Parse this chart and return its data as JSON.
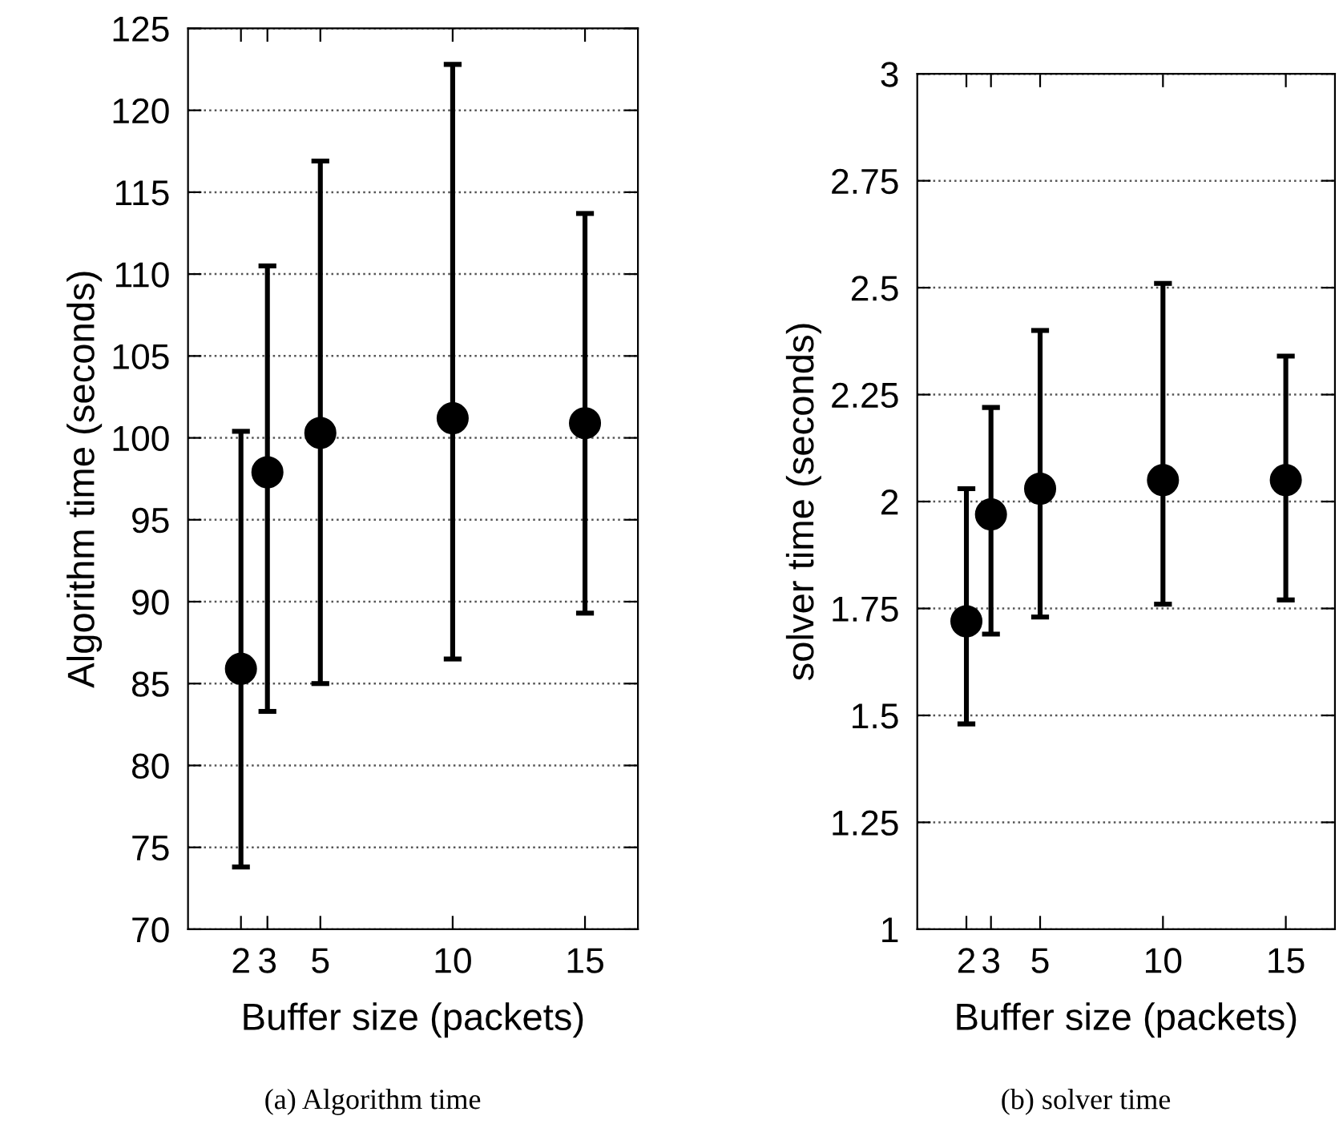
{
  "chart_data": [
    {
      "type": "scatter",
      "xlabel": "Buffer size (packets)",
      "ylabel": "Algorithm time (seconds)",
      "x": [
        2,
        3,
        5,
        10,
        15
      ],
      "values": [
        85.9,
        97.9,
        100.3,
        101.2,
        100.9
      ],
      "errors": [
        [
          73.8,
          100.4
        ],
        [
          83.3,
          110.5
        ],
        [
          85.0,
          116.9
        ],
        [
          86.5,
          122.8
        ],
        [
          89.3,
          113.7
        ]
      ],
      "color": "#000000",
      "marker": "circle",
      "xlim": [
        0,
        17
      ],
      "xticks": [
        2,
        3,
        5,
        10,
        15
      ],
      "ylim": [
        70,
        125
      ],
      "yticks": [
        70,
        75,
        80,
        85,
        90,
        95,
        100,
        105,
        110,
        115,
        120,
        125
      ],
      "grid": "y",
      "annotations": [
        "(a) Algorithm time"
      ]
    },
    {
      "type": "scatter",
      "xlabel": "Buffer size (packets)",
      "ylabel": "solver time (seconds)",
      "x": [
        2,
        3,
        5,
        10,
        15
      ],
      "values": [
        1.72,
        1.97,
        2.03,
        2.05,
        2.05
      ],
      "errors": [
        [
          1.48,
          2.03
        ],
        [
          1.69,
          2.22
        ],
        [
          1.73,
          2.4
        ],
        [
          1.76,
          2.51
        ],
        [
          1.77,
          2.34
        ]
      ],
      "color": "#000000",
      "marker": "circle",
      "xlim": [
        0,
        17
      ],
      "xticks": [
        2,
        3,
        5,
        10,
        15
      ],
      "ylim": [
        1,
        3
      ],
      "yticks": [
        1,
        1.25,
        1.5,
        1.75,
        2,
        2.25,
        2.5,
        2.75,
        3
      ],
      "grid": "y",
      "annotations": [
        "(b) solver time"
      ]
    }
  ]
}
